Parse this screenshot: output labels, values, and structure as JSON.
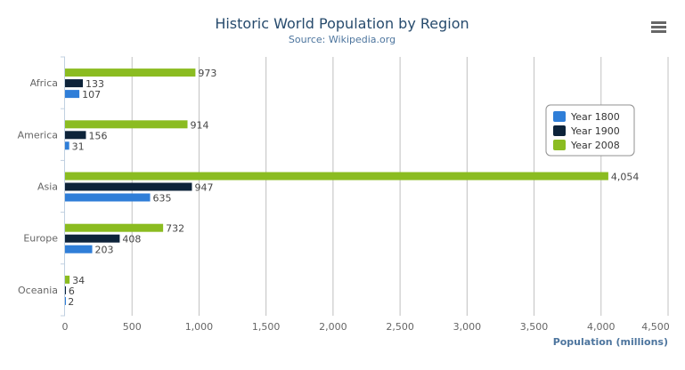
{
  "chart_data": {
    "type": "bar",
    "orientation": "horizontal",
    "title": "Historic World Population by Region",
    "subtitle": "Source: Wikipedia.org",
    "xlabel": "Population (millions)",
    "ylabel": "",
    "categories": [
      "Africa",
      "America",
      "Asia",
      "Europe",
      "Oceania"
    ],
    "series": [
      {
        "name": "Year 1800",
        "color": "#2f7ed8",
        "values": [
          107,
          31,
          635,
          203,
          2
        ]
      },
      {
        "name": "Year 1900",
        "color": "#0d233a",
        "values": [
          133,
          156,
          947,
          408,
          6
        ]
      },
      {
        "name": "Year 2008",
        "color": "#8bbc21",
        "values": [
          973,
          914,
          4054,
          732,
          34
        ]
      }
    ],
    "xlim": [
      0,
      4500
    ],
    "ticks": [
      "0",
      "500",
      "1,000",
      "1,500",
      "2,000",
      "2,500",
      "3,000",
      "3,500",
      "4,000",
      "4,500"
    ],
    "grid": true,
    "legend": "right, floating",
    "data_labels": true
  },
  "menu_icon": "hamburger-menu-icon"
}
